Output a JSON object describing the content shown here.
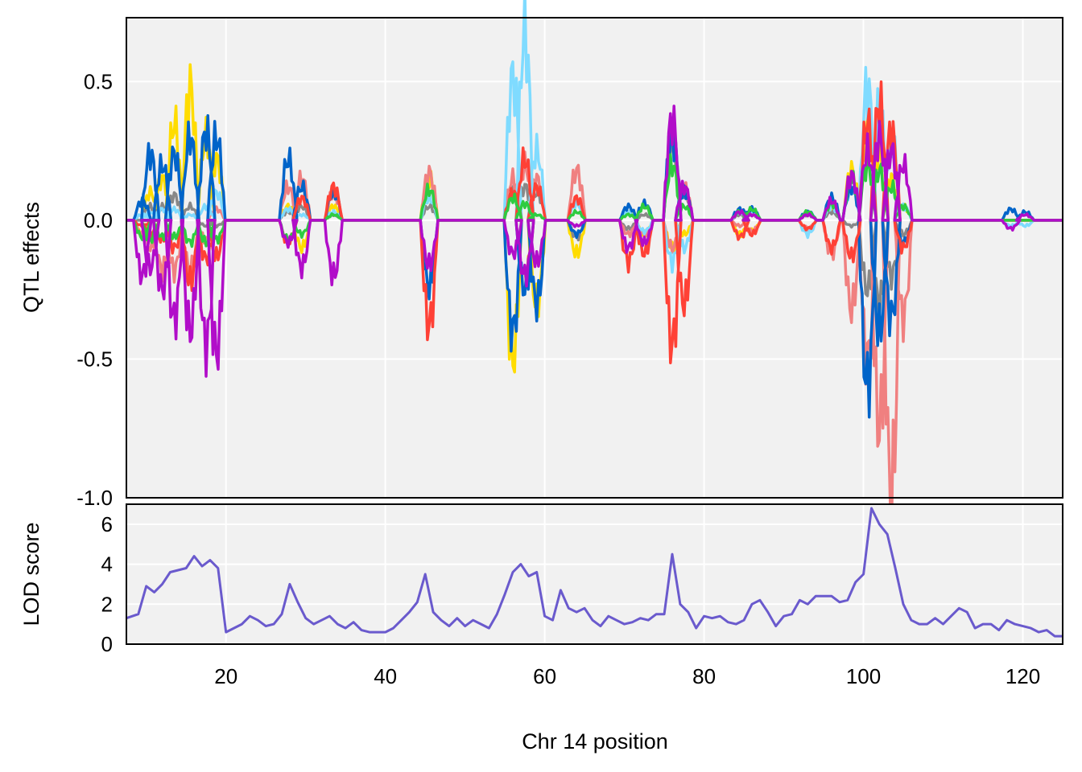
{
  "chart_data": [
    {
      "type": "line",
      "ylabel": "QTL effects",
      "xlabel": "",
      "xlim": [
        7.5,
        125
      ],
      "ylim": [
        -1.0,
        0.73
      ],
      "yticks": [
        -1.0,
        -0.5,
        0.0,
        0.5
      ],
      "ytick_labels": [
        "-1.0",
        "-0.5",
        "0.0",
        "0.5"
      ],
      "xgrid": [
        20,
        40,
        60,
        80,
        100,
        120
      ],
      "grid": true,
      "legend": "none",
      "colors": {
        "yellow": "#FFDC00",
        "gray": "#888888",
        "salmon": "#F08080",
        "blue": "#0064C9",
        "lightblue": "#7FDBFF",
        "red": "#FF4136",
        "green": "#2ECC40",
        "purple": "#B10DC9"
      },
      "peaks": [
        {
          "x": 9.5,
          "values": {
            "yellow": -0.05,
            "gray": 0.0,
            "salmon": -0.05,
            "blue": 0.07,
            "lightblue": 0.02,
            "red": -0.02,
            "green": -0.06,
            "purple": -0.2
          }
        },
        {
          "x": 10.5,
          "values": {
            "yellow": 0.1,
            "gray": 0.05,
            "salmon": -0.1,
            "blue": 0.24,
            "lightblue": 0.03,
            "red": -0.05,
            "green": -0.07,
            "purple": -0.17
          }
        },
        {
          "x": 12.0,
          "values": {
            "yellow": 0.15,
            "gray": 0.05,
            "salmon": -0.18,
            "blue": 0.2,
            "lightblue": 0.04,
            "red": -0.07,
            "green": -0.06,
            "purple": -0.25
          }
        },
        {
          "x": 13.5,
          "values": {
            "yellow": 0.35,
            "gray": 0.09,
            "salmon": -0.18,
            "blue": 0.24,
            "lightblue": 0.04,
            "red": -0.1,
            "green": -0.06,
            "purple": -0.36
          }
        },
        {
          "x": 15.5,
          "values": {
            "yellow": 0.48,
            "gray": 0.05,
            "salmon": -0.18,
            "blue": 0.3,
            "lightblue": 0.02,
            "red": -0.22,
            "green": -0.08,
            "purple": -0.4
          }
        },
        {
          "x": 17.5,
          "values": {
            "yellow": 0.3,
            "gray": -0.02,
            "salmon": -0.07,
            "blue": 0.32,
            "lightblue": 0.05,
            "red": -0.14,
            "green": -0.08,
            "purple": -0.45
          }
        },
        {
          "x": 18.8,
          "values": {
            "yellow": 0.22,
            "gray": -0.02,
            "salmon": 0.04,
            "blue": 0.3,
            "lightblue": 0.1,
            "red": -0.13,
            "green": -0.07,
            "purple": -0.48
          }
        },
        {
          "x": 27.8,
          "values": {
            "yellow": 0.05,
            "gray": 0.03,
            "salmon": 0.12,
            "blue": 0.22,
            "lightblue": 0.04,
            "red": -0.08,
            "green": -0.07,
            "purple": -0.08
          }
        },
        {
          "x": 29.5,
          "values": {
            "yellow": -0.1,
            "gray": 0.05,
            "salmon": 0.15,
            "blue": 0.12,
            "lightblue": 0.02,
            "red": 0.08,
            "green": -0.05,
            "purple": -0.17
          }
        },
        {
          "x": 33.5,
          "values": {
            "yellow": 0.05,
            "gray": 0.02,
            "salmon": 0.1,
            "blue": 0.1,
            "lightblue": 0.03,
            "red": 0.12,
            "green": 0.02,
            "purple": -0.2
          }
        },
        {
          "x": 45.5,
          "values": {
            "yellow": 0.15,
            "gray": 0.05,
            "salmon": 0.17,
            "blue": -0.24,
            "lightblue": 0.08,
            "red": -0.38,
            "green": 0.11,
            "purple": -0.16
          }
        },
        {
          "x": 56.0,
          "values": {
            "yellow": -0.5,
            "gray": 0.1,
            "salmon": 0.15,
            "blue": -0.4,
            "lightblue": 0.52,
            "red": 0.1,
            "green": 0.08,
            "purple": -0.12
          }
        },
        {
          "x": 57.5,
          "values": {
            "yellow": -0.2,
            "gray": 0.12,
            "salmon": 0.2,
            "blue": -0.25,
            "lightblue": 0.68,
            "red": 0.22,
            "green": 0.06,
            "purple": -0.2
          }
        },
        {
          "x": 59.0,
          "values": {
            "yellow": -0.3,
            "gray": 0.1,
            "salmon": 0.15,
            "blue": -0.3,
            "lightblue": 0.25,
            "red": 0.12,
            "green": 0.02,
            "purple": -0.15
          }
        },
        {
          "x": 64.0,
          "values": {
            "yellow": -0.12,
            "gray": -0.06,
            "salmon": 0.18,
            "blue": -0.05,
            "lightblue": 0.06,
            "red": 0.08,
            "green": 0.03,
            "purple": -0.02
          }
        },
        {
          "x": 70.5,
          "values": {
            "yellow": 0.03,
            "gray": -0.03,
            "salmon": -0.05,
            "blue": 0.05,
            "lightblue": 0.03,
            "red": -0.15,
            "green": 0.02,
            "purple": -0.1
          }
        },
        {
          "x": 72.5,
          "values": {
            "yellow": -0.05,
            "gray": 0.02,
            "salmon": -0.05,
            "blue": 0.06,
            "lightblue": -0.04,
            "red": -0.12,
            "green": 0.05,
            "purple": -0.08
          }
        },
        {
          "x": 76.0,
          "values": {
            "yellow": -0.1,
            "gray": 0.3,
            "salmon": -0.1,
            "blue": 0.3,
            "lightblue": -0.15,
            "red": -0.45,
            "green": 0.2,
            "purple": 0.36
          }
        },
        {
          "x": 77.5,
          "values": {
            "yellow": -0.05,
            "gray": 0.1,
            "salmon": 0.12,
            "blue": 0.1,
            "lightblue": -0.1,
            "red": -0.3,
            "green": 0.05,
            "purple": 0.12
          }
        },
        {
          "x": 84.5,
          "values": {
            "yellow": -0.05,
            "gray": 0.02,
            "salmon": -0.02,
            "blue": 0.04,
            "lightblue": 0.03,
            "red": -0.06,
            "green": 0.03,
            "purple": 0.03
          }
        },
        {
          "x": 86.0,
          "values": {
            "yellow": -0.04,
            "gray": 0.02,
            "salmon": -0.04,
            "blue": 0.04,
            "lightblue": 0.03,
            "red": -0.05,
            "green": 0.04,
            "purple": 0.02
          }
        },
        {
          "x": 93.0,
          "values": {
            "yellow": 0.02,
            "gray": 0.02,
            "salmon": -0.03,
            "blue": 0.03,
            "lightblue": -0.05,
            "red": -0.03,
            "green": 0.03,
            "purple": 0.02
          }
        },
        {
          "x": 96.0,
          "values": {
            "yellow": 0.05,
            "gray": 0.03,
            "salmon": -0.12,
            "blue": 0.08,
            "lightblue": 0.05,
            "red": -0.1,
            "green": 0.06,
            "purple": 0.07
          }
        },
        {
          "x": 98.5,
          "values": {
            "yellow": 0.18,
            "gray": -0.02,
            "salmon": -0.32,
            "blue": 0.12,
            "lightblue": 0.12,
            "red": -0.13,
            "green": 0.15,
            "purple": 0.16
          }
        },
        {
          "x": 100.5,
          "values": {
            "yellow": 0.3,
            "gray": -0.25,
            "salmon": -0.5,
            "blue": -0.6,
            "lightblue": 0.48,
            "red": 0.35,
            "green": 0.2,
            "purple": 0.25
          }
        },
        {
          "x": 102.0,
          "values": {
            "yellow": 0.25,
            "gray": -0.3,
            "salmon": -0.75,
            "blue": -0.4,
            "lightblue": 0.4,
            "red": 0.42,
            "green": 0.18,
            "purple": 0.3
          }
        },
        {
          "x": 103.5,
          "values": {
            "yellow": 0.15,
            "gray": -0.2,
            "salmon": -1.0,
            "blue": -0.35,
            "lightblue": 0.3,
            "red": 0.32,
            "green": 0.12,
            "purple": 0.25
          }
        },
        {
          "x": 105.0,
          "values": {
            "yellow": 0.05,
            "gray": -0.05,
            "salmon": -0.35,
            "blue": -0.08,
            "lightblue": 0.05,
            "red": -0.1,
            "green": 0.05,
            "purple": 0.2
          }
        },
        {
          "x": 118.5,
          "values": {
            "yellow": 0.0,
            "gray": 0.0,
            "salmon": 0.0,
            "blue": 0.04,
            "lightblue": -0.02,
            "red": 0.0,
            "green": 0.0,
            "purple": -0.03
          }
        },
        {
          "x": 120.3,
          "values": {
            "yellow": 0.0,
            "gray": 0.0,
            "salmon": 0.0,
            "blue": 0.03,
            "lightblue": -0.02,
            "red": 0.0,
            "green": 0.0,
            "purple": 0.02
          }
        }
      ]
    },
    {
      "type": "line",
      "ylabel": "LOD score",
      "xlabel": "Chr 14 position",
      "xlim": [
        7.5,
        125
      ],
      "ylim": [
        0,
        7
      ],
      "yticks": [
        0,
        2,
        4,
        6
      ],
      "ytick_labels": [
        "0",
        "2",
        "4",
        "6"
      ],
      "xticks": [
        20,
        40,
        60,
        80,
        100,
        120
      ],
      "xtick_labels": [
        "20",
        "40",
        "60",
        "80",
        "100",
        "120"
      ],
      "grid": true,
      "color": "#6A5ACD",
      "x": [
        7.5,
        9,
        10,
        11,
        12,
        13,
        14,
        15,
        16,
        17,
        18,
        19,
        20,
        21,
        22,
        23,
        24,
        25,
        26,
        27,
        28,
        29,
        30,
        31,
        32,
        33,
        34,
        35,
        36,
        37,
        38,
        39,
        40,
        41,
        42,
        43,
        44,
        45,
        46,
        47,
        48,
        49,
        50,
        51,
        52,
        53,
        54,
        55,
        56,
        57,
        58,
        59,
        60,
        61,
        62,
        63,
        64,
        65,
        66,
        67,
        68,
        69,
        70,
        71,
        72,
        73,
        74,
        75,
        76,
        77,
        78,
        79,
        80,
        81,
        82,
        83,
        84,
        85,
        86,
        87,
        88,
        89,
        90,
        91,
        92,
        93,
        94,
        95,
        96,
        97,
        98,
        99,
        100,
        101,
        102,
        103,
        104,
        105,
        106,
        107,
        108,
        109,
        110,
        111,
        112,
        113,
        114,
        115,
        116,
        117,
        118,
        119,
        120,
        121,
        122,
        123,
        124,
        125
      ],
      "y": [
        1.3,
        1.5,
        2.9,
        2.6,
        3.0,
        3.6,
        3.7,
        3.8,
        4.4,
        3.9,
        4.2,
        3.8,
        0.6,
        0.8,
        1.0,
        1.4,
        1.2,
        0.9,
        1.0,
        1.5,
        3.0,
        2.1,
        1.3,
        1.0,
        1.2,
        1.4,
        1.0,
        0.8,
        1.1,
        0.7,
        0.6,
        0.6,
        0.6,
        0.8,
        1.2,
        1.6,
        2.1,
        3.5,
        1.6,
        1.2,
        0.9,
        1.3,
        0.9,
        1.2,
        1.0,
        0.8,
        1.5,
        2.5,
        3.6,
        4.0,
        3.4,
        3.6,
        1.4,
        1.2,
        2.7,
        1.8,
        1.6,
        1.8,
        1.2,
        0.9,
        1.4,
        1.2,
        1.0,
        1.1,
        1.3,
        1.2,
        1.5,
        1.5,
        4.5,
        2.0,
        1.6,
        0.8,
        1.4,
        1.3,
        1.4,
        1.1,
        1.0,
        1.2,
        2.0,
        2.2,
        1.6,
        0.9,
        1.4,
        1.5,
        2.2,
        2.0,
        2.4,
        2.4,
        2.4,
        2.1,
        2.2,
        3.1,
        3.5,
        6.8,
        6.0,
        5.5,
        3.8,
        2.0,
        1.2,
        1.0,
        1.0,
        1.3,
        1.0,
        1.4,
        1.8,
        1.6,
        0.8,
        1.0,
        1.0,
        0.7,
        1.2,
        1.0,
        0.9,
        0.8,
        0.6,
        0.7,
        0.4,
        0.4
      ]
    }
  ]
}
